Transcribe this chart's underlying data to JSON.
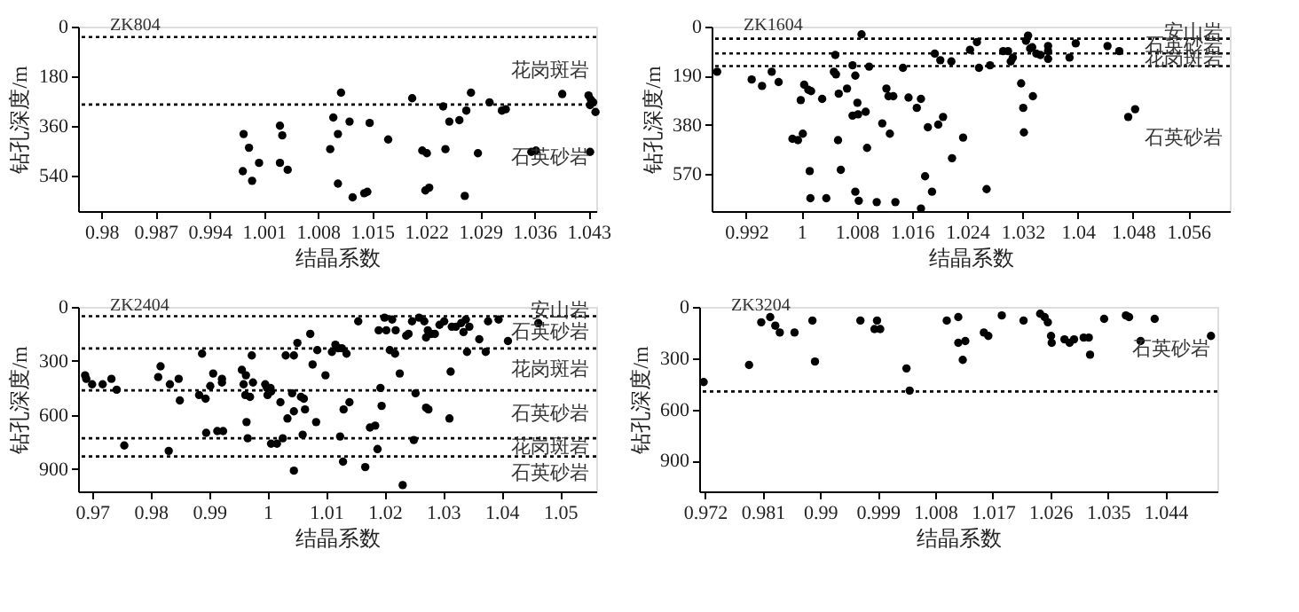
{
  "chart_data": [
    {
      "type": "scatter",
      "title": "ZK804",
      "xlabel": "结晶系数",
      "ylabel": "钻孔深度/m",
      "marker": "circle",
      "xlim": [
        0.977,
        1.044
      ],
      "xticks": [
        0.98,
        0.987,
        0.994,
        1.001,
        1.008,
        1.015,
        1.022,
        1.029,
        1.036,
        1.043
      ],
      "ylim": [
        670,
        0
      ],
      "yticks": [
        0,
        180,
        360,
        540
      ],
      "ref_lines": [
        {
          "axis": "y",
          "value": 38,
          "color": "#000000",
          "line_style": "dotted"
        },
        {
          "axis": "y",
          "value": 283,
          "color": "#000000",
          "line_style": "dotted"
        }
      ],
      "annotations": [
        "花岗斑岩",
        "石英砂岩"
      ],
      "series": [
        {
          "color": "#000000",
          "x": [
            0.9984,
            0.9991,
            0.9983,
            0.9995,
            1.0004,
            1.0031,
            1.0034,
            1.0031,
            1.0041,
            1.0096,
            1.01,
            1.0106,
            1.011,
            1.0106,
            1.0121,
            1.0125,
            1.014,
            1.0144,
            1.0147,
            1.0171,
            1.0202,
            1.0215,
            1.0221,
            1.0219,
            1.0224,
            1.0242,
            1.0245,
            1.025,
            1.0263,
            1.0272,
            1.0278,
            1.027,
            1.0287,
            1.0302,
            1.0318,
            1.0323,
            1.0356,
            1.0362,
            1.0396,
            1.043,
            1.0433,
            1.0436,
            1.0432,
            1.0439,
            1.0432
          ],
          "values": [
            390,
            440,
            525,
            560,
            495,
            360,
            395,
            495,
            520,
            445,
            330,
            390,
            240,
            570,
            345,
            620,
            605,
            600,
            350,
            410,
            260,
            450,
            460,
            595,
            585,
            290,
            445,
            345,
            340,
            305,
            240,
            615,
            460,
            275,
            305,
            300,
            455,
            450,
            245,
            250,
            265,
            275,
            285,
            310,
            455
          ]
        }
      ]
    },
    {
      "type": "scatter",
      "title": "ZK1604",
      "xlabel": "结晶系数",
      "ylabel": "钻孔深度/m",
      "marker": "circle",
      "xlim": [
        0.987,
        1.062
      ],
      "xticks": [
        0.992,
        1,
        1.008,
        1.016,
        1.024,
        1.032,
        1.04,
        1.048,
        1.056
      ],
      "ylim": [
        715,
        0
      ],
      "yticks": [
        0,
        190,
        380,
        570
      ],
      "ref_lines": [
        {
          "axis": "y",
          "value": 47,
          "color": "#000000",
          "line_style": "dotted"
        },
        {
          "axis": "y",
          "value": 104,
          "color": "#000000",
          "line_style": "dotted"
        },
        {
          "axis": "y",
          "value": 153,
          "color": "#000000",
          "line_style": "dotted"
        }
      ],
      "annotations": [
        "安山岩",
        "石英砂岩",
        "花岗斑岩",
        "石英砂岩"
      ],
      "series": [
        {
          "color": "#000000",
          "x": [
            0.9878,
            0.9928,
            0.9943,
            0.9957,
            0.9967,
            0.9987,
            0.9995,
            1.0004,
            1.001,
            1.0014,
            0.9999,
            1.0002,
            1.0012,
            1.0013,
            1.003,
            1.0036,
            1.0049,
            1.0047,
            1.005,
            1.0053,
            1.0054,
            1.0057,
            1.0066,
            1.0074,
            1.0078,
            1.0074,
            1.0081,
            1.0082,
            1.0078,
            1.0083,
            1.0087,
            1.0093,
            1.0095,
            1.0098,
            1.0109,
            1.0117,
            1.0123,
            1.0126,
            1.0128,
            1.0133,
            1.0136,
            1.0147,
            1.0155,
            1.0167,
            1.0173,
            1.0173,
            1.0179,
            1.0183,
            1.0189,
            1.0193,
            1.0198,
            1.0201,
            1.0205,
            1.0217,
            1.0218,
            1.0234,
            1.0244,
            1.0254,
            1.0257,
            1.0268,
            1.0273,
            1.0292,
            1.0299,
            1.0303,
            1.0306,
            1.0318,
            1.0321,
            1.0322,
            1.0325,
            1.0328,
            1.0331,
            1.0334,
            1.0335,
            1.034,
            1.0346,
            1.0357,
            1.0357,
            1.0357,
            1.0388,
            1.0397,
            1.0443,
            1.046,
            1.0473,
            1.0483
          ],
          "values": [
            175,
            205,
            230,
            175,
            215,
            435,
            440,
            225,
            245,
            250,
            285,
            415,
            560,
            665,
            280,
            665,
            110,
            175,
            185,
            440,
            260,
            555,
            240,
            150,
            190,
            345,
            295,
            340,
            640,
            675,
            30,
            330,
            470,
            155,
            680,
            375,
            240,
            270,
            415,
            270,
            680,
            160,
            275,
            315,
            280,
            705,
            580,
            390,
            640,
            105,
            380,
            130,
            350,
            135,
            510,
            430,
            90,
            60,
            160,
            630,
            150,
            95,
            95,
            135,
            120,
            220,
            315,
            410,
            55,
            35,
            85,
            80,
            270,
            105,
            110,
            75,
            95,
            125,
            120,
            65,
            75,
            95,
            350,
            320
          ]
        }
      ]
    },
    {
      "type": "scatter",
      "title": "ZK2404",
      "xlabel": "结晶系数",
      "ylabel": "钻孔深度/m",
      "marker": "circle",
      "xlim": [
        0.9676,
        1.0562
      ],
      "xticks": [
        0.97,
        0.98,
        0.99,
        1,
        1.01,
        1.02,
        1.03,
        1.04,
        1.05
      ],
      "ylim": [
        1025,
        0
      ],
      "yticks": [
        0,
        300,
        600,
        900
      ],
      "ref_lines": [
        {
          "axis": "y",
          "value": 52,
          "color": "#000000",
          "line_style": "dotted"
        },
        {
          "axis": "y",
          "value": 231,
          "color": "#000000",
          "line_style": "dotted"
        },
        {
          "axis": "y",
          "value": 464,
          "color": "#000000",
          "line_style": "dotted"
        },
        {
          "axis": "y",
          "value": 730,
          "color": "#000000",
          "line_style": "dotted"
        },
        {
          "axis": "y",
          "value": 831,
          "color": "#000000",
          "line_style": "dotted"
        }
      ],
      "annotations": [
        "安山岩",
        "石英砂岩",
        "花岗斑岩",
        "石英砂岩",
        "花岗斑岩",
        "石英砂岩"
      ],
      "series": [
        {
          "color": "#000000",
          "x": [
            0.9688,
            0.969,
            0.97,
            0.9718,
            0.9733,
            0.9742,
            0.9755,
            0.9813,
            0.9817,
            0.9833,
            0.9848,
            0.985,
            0.9831,
            0.9888,
            0.9883,
            0.9894,
            0.9895,
            0.9907,
            0.9902,
            0.9914,
            0.9924,
            0.9922,
            0.9922,
            0.9956,
            0.9959,
            0.9963,
            0.9962,
            0.9964,
            0.9966,
            0.997,
            0.9975,
            0.9973,
            0.9996,
            0.9999,
            1.0,
            1.0005,
            1.0006,
            1.0006,
            1.0016,
            1.0022,
            1.0026,
            1.0031,
            1.0034,
            1.0045,
            1.0042,
            1.0045,
            1.0045,
            1.0051,
            1.0057,
            1.0062,
            1.006,
            1.0064,
            1.0073,
            1.0077,
            1.0083,
            1.0085,
            1.0099,
            1.011,
            1.0116,
            1.0121,
            1.0127,
            1.0124,
            1.0129,
            1.013,
            1.0135,
            1.014,
            1.0155,
            1.0167,
            1.0175,
            1.0184,
            1.0188,
            1.019,
            1.0193,
            1.0195,
            1.02,
            1.0203,
            1.0209,
            1.0213,
            1.0218,
            1.0219,
            1.0226,
            1.0231,
            1.0237,
            1.0241,
            1.0247,
            1.0253,
            1.025,
            1.0259,
            1.0268,
            1.0271,
            1.0275,
            1.0271,
            1.0274,
            1.028,
            1.0286,
            1.0294,
            1.0302,
            1.0311,
            1.0313,
            1.0315,
            1.0322,
            1.0331,
            1.0335,
            1.0339,
            1.0341,
            1.0345,
            1.0362,
            1.0373,
            1.0377,
            1.0395,
            1.0411,
            1.0463
          ],
          "values": [
            380,
            400,
            430,
            430,
            400,
            460,
            770,
            390,
            330,
            430,
            400,
            520,
            800,
            260,
            490,
            510,
            700,
            370,
            440,
            690,
            690,
            400,
            420,
            350,
            430,
            380,
            490,
            640,
            730,
            500,
            420,
            270,
            430,
            450,
            490,
            450,
            470,
            760,
            760,
            530,
            730,
            270,
            620,
            270,
            480,
            580,
            910,
            200,
            500,
            510,
            710,
            570,
            150,
            320,
            640,
            240,
            380,
            250,
            210,
            230,
            230,
            720,
            860,
            570,
            260,
            530,
            80,
            890,
            670,
            660,
            790,
            130,
            450,
            550,
            60,
            130,
            240,
            70,
            260,
            130,
            370,
            990,
            160,
            150,
            80,
            480,
            740,
            60,
            80,
            560,
            570,
            170,
            130,
            150,
            150,
            100,
            80,
            620,
            360,
            110,
            110,
            90,
            140,
            70,
            250,
            110,
            180,
            250,
            80,
            70,
            190,
            90
          ]
        }
      ]
    },
    {
      "type": "scatter",
      "title": "ZK3204",
      "xlabel": "结晶系数",
      "ylabel": "钻孔深度/m",
      "marker": "circle",
      "xlim": [
        0.9711,
        1.0521
      ],
      "xticks": [
        0.972,
        0.981,
        0.99,
        0.999,
        1.008,
        1.017,
        1.026,
        1.035,
        1.044
      ],
      "ylim": [
        1080,
        0
      ],
      "yticks": [
        0,
        300,
        600,
        900
      ],
      "ref_lines": [
        {
          "axis": "y",
          "value": 495,
          "color": "#000000",
          "line_style": "dotted"
        }
      ],
      "annotations": [
        "石英砂岩"
      ],
      "series": [
        {
          "color": "#000000",
          "x": [
            0.9718,
            0.9789,
            0.9808,
            0.9822,
            0.983,
            0.9837,
            0.986,
            0.9888,
            0.9892,
            0.9963,
            0.9985,
            0.9989,
            0.9994,
            1.0035,
            1.004,
            1.0098,
            1.0116,
            1.0116,
            1.0123,
            1.0127,
            1.0156,
            1.0163,
            1.0184,
            1.0218,
            1.0244,
            1.0251,
            1.0256,
            1.0261,
            1.0262,
            1.0282,
            1.029,
            1.0297,
            1.0312,
            1.032,
            1.0322,
            1.0344,
            1.0378,
            1.0383,
            1.0401,
            1.0423,
            1.0511
          ],
          "values": [
            440,
            340,
            90,
            60,
            110,
            150,
            150,
            80,
            320,
            80,
            130,
            80,
            130,
            360,
            490,
            80,
            60,
            210,
            310,
            200,
            150,
            170,
            50,
            80,
            40,
            60,
            90,
            170,
            210,
            190,
            210,
            190,
            180,
            180,
            280,
            70,
            50,
            60,
            200,
            70,
            170
          ]
        }
      ]
    }
  ]
}
